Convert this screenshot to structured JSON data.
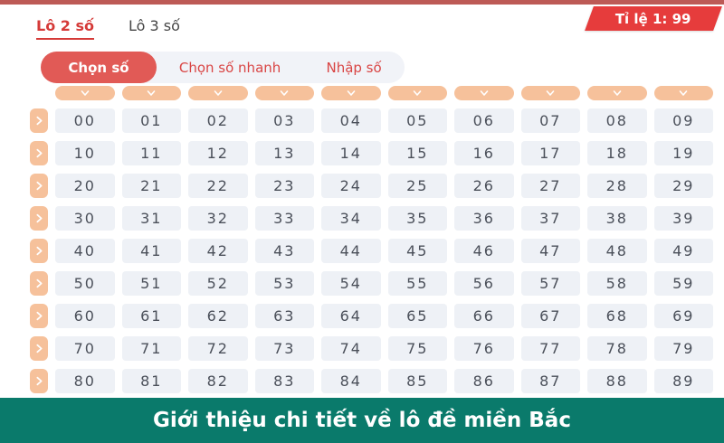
{
  "top": {
    "ratio_badge": "Tỉ lệ 1: 99"
  },
  "game_tabs": [
    {
      "label": "Lô 2 số",
      "active": true
    },
    {
      "label": "Lô 3 số",
      "active": false
    }
  ],
  "mode_tabs": [
    {
      "label": "Chọn số",
      "active": true
    },
    {
      "label": "Chọn số nhanh",
      "active": false
    },
    {
      "label": "Nhập số",
      "active": false
    }
  ],
  "grid": {
    "column_count": 10,
    "column_header_icon": "chevron-down-icon",
    "row_expander_icon": "chevron-right-icon",
    "rows": [
      [
        "00",
        "01",
        "02",
        "03",
        "04",
        "05",
        "06",
        "07",
        "08",
        "09"
      ],
      [
        "10",
        "11",
        "12",
        "13",
        "14",
        "15",
        "16",
        "17",
        "18",
        "19"
      ],
      [
        "20",
        "21",
        "22",
        "23",
        "24",
        "25",
        "26",
        "27",
        "28",
        "29"
      ],
      [
        "30",
        "31",
        "32",
        "33",
        "34",
        "35",
        "36",
        "37",
        "38",
        "39"
      ],
      [
        "40",
        "41",
        "42",
        "43",
        "44",
        "45",
        "46",
        "47",
        "48",
        "49"
      ],
      [
        "50",
        "51",
        "52",
        "53",
        "54",
        "55",
        "56",
        "57",
        "58",
        "59"
      ],
      [
        "60",
        "61",
        "62",
        "63",
        "64",
        "65",
        "66",
        "67",
        "68",
        "69"
      ],
      [
        "70",
        "71",
        "72",
        "73",
        "74",
        "75",
        "76",
        "77",
        "78",
        "79"
      ],
      [
        "80",
        "81",
        "82",
        "83",
        "84",
        "85",
        "86",
        "87",
        "88",
        "89"
      ]
    ]
  },
  "banner": {
    "text": "Giới thiệu chi tiết về lô đề miền Bắc"
  },
  "colors": {
    "accent_red": "#e63c3c",
    "pill_red": "#e15a56",
    "top_strip": "#bd5a56",
    "peach": "#f6c19b",
    "cell_bg": "#eef1f6",
    "cell_text": "#4b505a",
    "banner_teal": "#0a7a6b"
  }
}
